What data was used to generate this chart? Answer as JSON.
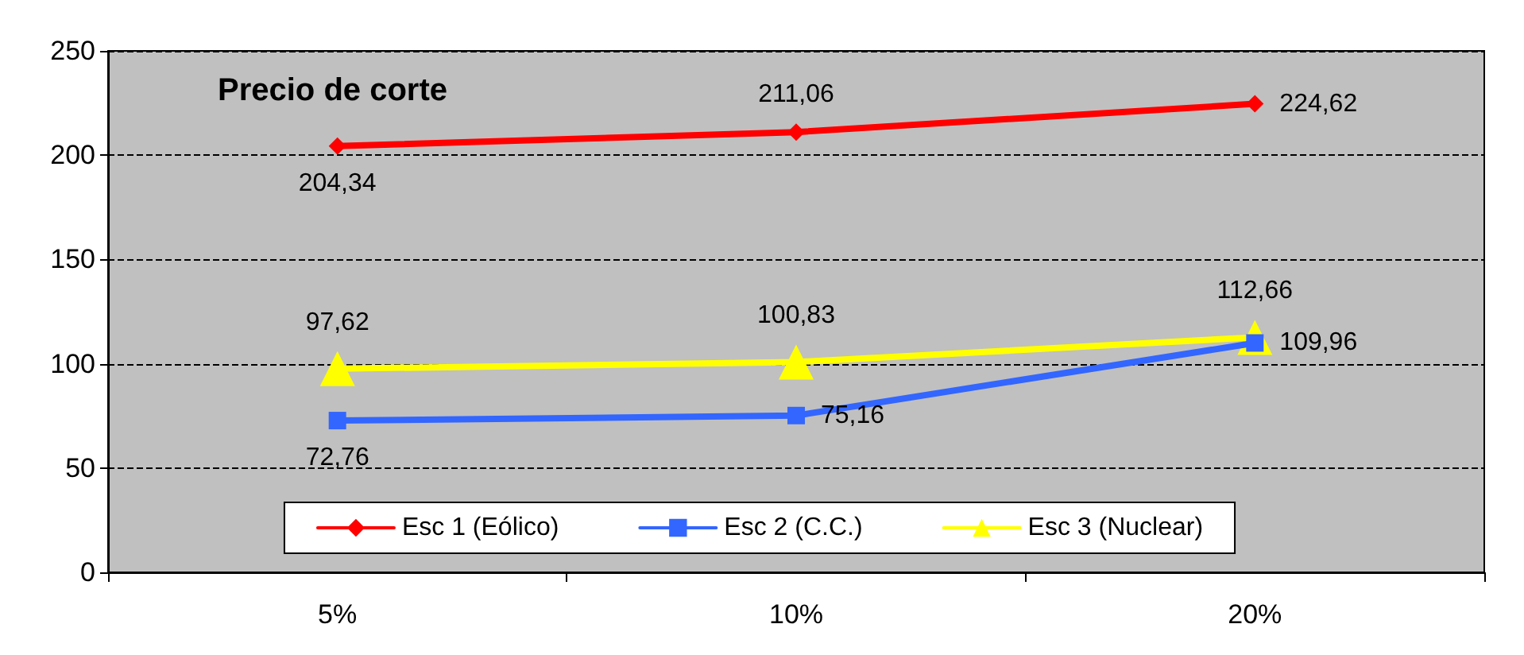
{
  "chart_data": {
    "type": "line",
    "title": "Precio de corte",
    "categories": [
      "5%",
      "10%",
      "20%"
    ],
    "series": [
      {
        "name": "Esc 1 (Eólico)",
        "color": "#ff0000",
        "marker": "diamond",
        "values": [
          204.34,
          211.06,
          224.62
        ],
        "value_labels": [
          "204,34",
          "211,06",
          "224,62"
        ]
      },
      {
        "name": "Esc 2 (C.C.)",
        "color": "#3366ff",
        "marker": "square",
        "values": [
          72.76,
          75.16,
          109.96
        ],
        "value_labels": [
          "72,76",
          "75,16",
          "109,96"
        ]
      },
      {
        "name": "Esc 3 (Nuclear)",
        "color": "#ffff00",
        "marker": "triangle",
        "values": [
          97.62,
          100.83,
          112.66
        ],
        "value_labels": [
          "97,62",
          "100,83",
          "112,66"
        ]
      }
    ],
    "ylim": [
      0,
      250
    ],
    "yticks": [
      0,
      50,
      100,
      150,
      200,
      250
    ],
    "grid": "y",
    "legend": "bottom",
    "line_style": "solid"
  }
}
